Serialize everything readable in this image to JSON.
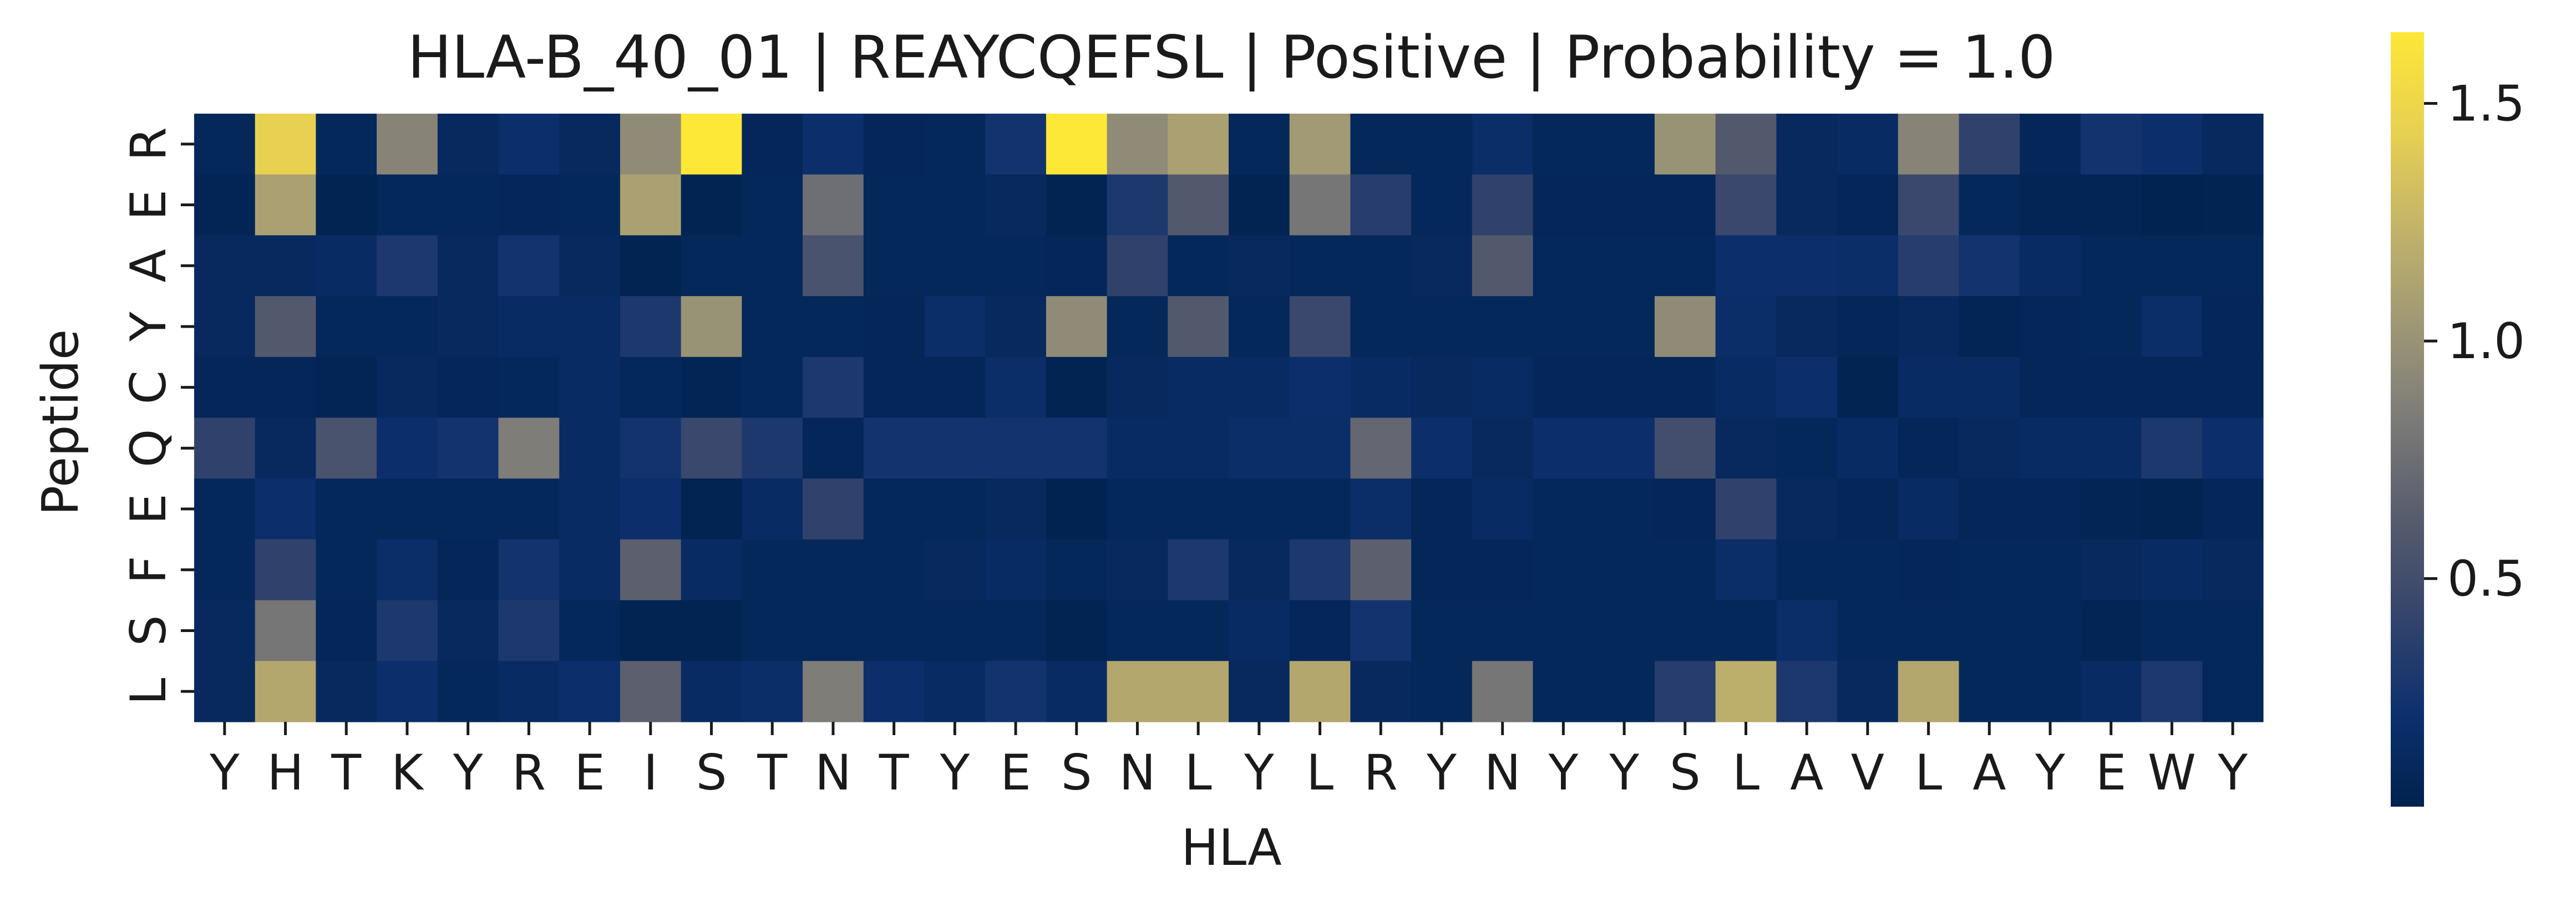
{
  "chart_data": {
    "type": "heatmap",
    "title": "HLA-B_40_01 | REAYCQEFSL | Positive | Probability = 1.0",
    "xlabel": "HLA",
    "ylabel": "Peptide",
    "x_categories": [
      "Y",
      "H",
      "T",
      "K",
      "Y",
      "R",
      "E",
      "I",
      "S",
      "T",
      "N",
      "T",
      "Y",
      "E",
      "S",
      "N",
      "L",
      "Y",
      "L",
      "R",
      "Y",
      "N",
      "Y",
      "Y",
      "S",
      "L",
      "A",
      "V",
      "L",
      "A",
      "Y",
      "E",
      "W",
      "Y"
    ],
    "y_categories": [
      "R",
      "E",
      "A",
      "Y",
      "C",
      "Q",
      "E",
      "F",
      "S",
      "L"
    ],
    "values": [
      [
        0.1,
        1.45,
        0.1,
        0.9,
        0.12,
        0.2,
        0.12,
        0.95,
        1.65,
        0.08,
        0.2,
        0.08,
        0.1,
        0.25,
        1.65,
        0.95,
        1.1,
        0.1,
        1.05,
        0.1,
        0.1,
        0.18,
        0.1,
        0.1,
        1.0,
        0.6,
        0.12,
        0.15,
        0.9,
        0.4,
        0.08,
        0.25,
        0.2,
        0.12
      ],
      [
        0.06,
        1.1,
        0.05,
        0.1,
        0.1,
        0.08,
        0.1,
        1.1,
        0.05,
        0.1,
        0.75,
        0.1,
        0.1,
        0.12,
        0.05,
        0.3,
        0.6,
        0.05,
        0.8,
        0.35,
        0.1,
        0.4,
        0.08,
        0.08,
        0.08,
        0.45,
        0.12,
        0.08,
        0.45,
        0.1,
        0.06,
        0.06,
        0.04,
        0.05
      ],
      [
        0.12,
        0.12,
        0.15,
        0.3,
        0.12,
        0.25,
        0.12,
        0.05,
        0.1,
        0.1,
        0.55,
        0.1,
        0.1,
        0.1,
        0.08,
        0.4,
        0.1,
        0.12,
        0.1,
        0.1,
        0.12,
        0.6,
        0.1,
        0.1,
        0.1,
        0.2,
        0.2,
        0.18,
        0.35,
        0.25,
        0.15,
        0.1,
        0.1,
        0.1
      ],
      [
        0.12,
        0.6,
        0.1,
        0.1,
        0.12,
        0.15,
        0.15,
        0.3,
        1.0,
        0.1,
        0.1,
        0.08,
        0.18,
        0.12,
        0.95,
        0.1,
        0.6,
        0.1,
        0.45,
        0.1,
        0.1,
        0.1,
        0.1,
        0.1,
        0.95,
        0.18,
        0.12,
        0.08,
        0.12,
        0.06,
        0.08,
        0.1,
        0.18,
        0.08
      ],
      [
        0.08,
        0.08,
        0.06,
        0.12,
        0.08,
        0.1,
        0.15,
        0.1,
        0.06,
        0.1,
        0.3,
        0.08,
        0.08,
        0.18,
        0.05,
        0.12,
        0.15,
        0.15,
        0.2,
        0.15,
        0.12,
        0.15,
        0.08,
        0.08,
        0.08,
        0.15,
        0.2,
        0.05,
        0.15,
        0.15,
        0.08,
        0.08,
        0.08,
        0.08
      ],
      [
        0.4,
        0.12,
        0.55,
        0.2,
        0.25,
        0.85,
        0.15,
        0.25,
        0.45,
        0.3,
        0.08,
        0.25,
        0.25,
        0.25,
        0.25,
        0.15,
        0.15,
        0.18,
        0.18,
        0.7,
        0.2,
        0.12,
        0.2,
        0.2,
        0.5,
        0.12,
        0.1,
        0.15,
        0.08,
        0.12,
        0.15,
        0.15,
        0.3,
        0.2
      ],
      [
        0.1,
        0.2,
        0.1,
        0.1,
        0.1,
        0.1,
        0.15,
        0.2,
        0.05,
        0.15,
        0.4,
        0.1,
        0.1,
        0.12,
        0.04,
        0.1,
        0.1,
        0.1,
        0.1,
        0.18,
        0.08,
        0.15,
        0.1,
        0.1,
        0.08,
        0.4,
        0.12,
        0.08,
        0.15,
        0.08,
        0.08,
        0.06,
        0.05,
        0.08
      ],
      [
        0.1,
        0.4,
        0.1,
        0.18,
        0.08,
        0.25,
        0.15,
        0.65,
        0.15,
        0.1,
        0.1,
        0.1,
        0.12,
        0.15,
        0.1,
        0.12,
        0.3,
        0.12,
        0.3,
        0.65,
        0.08,
        0.08,
        0.1,
        0.1,
        0.1,
        0.18,
        0.1,
        0.1,
        0.08,
        0.1,
        0.1,
        0.12,
        0.15,
        0.12
      ],
      [
        0.12,
        0.8,
        0.08,
        0.3,
        0.12,
        0.3,
        0.1,
        0.05,
        0.05,
        0.1,
        0.1,
        0.1,
        0.1,
        0.1,
        0.05,
        0.1,
        0.1,
        0.15,
        0.08,
        0.25,
        0.1,
        0.1,
        0.1,
        0.1,
        0.1,
        0.1,
        0.18,
        0.1,
        0.1,
        0.1,
        0.1,
        0.06,
        0.1,
        0.1
      ],
      [
        0.12,
        1.15,
        0.12,
        0.2,
        0.1,
        0.15,
        0.2,
        0.65,
        0.15,
        0.18,
        0.85,
        0.2,
        0.15,
        0.25,
        0.15,
        1.15,
        1.15,
        0.12,
        1.15,
        0.12,
        0.1,
        0.8,
        0.1,
        0.1,
        0.35,
        1.2,
        0.3,
        0.12,
        1.15,
        0.1,
        0.1,
        0.15,
        0.3,
        0.1
      ]
    ],
    "colormap": "cividis",
    "colorbar": {
      "vmin": 0.02,
      "vmax": 1.65,
      "ticks": [
        0.5,
        1.0,
        1.5
      ]
    }
  }
}
